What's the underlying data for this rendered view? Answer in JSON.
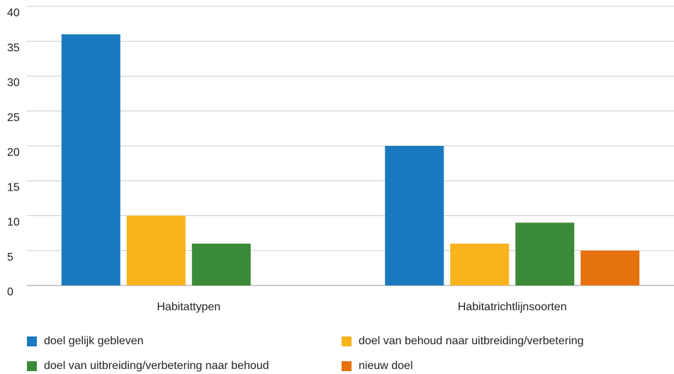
{
  "chart_data": {
    "type": "bar",
    "categories": [
      "Habitattypen",
      "Habitatrichtlijnsoorten"
    ],
    "series": [
      {
        "name": "doel gelijk gebleven",
        "color": "#1a7abf",
        "values": [
          36,
          20
        ]
      },
      {
        "name": "doel van behoud naar uitbreiding/verbetering",
        "color": "#f9b31d",
        "values": [
          10,
          6
        ]
      },
      {
        "name": "doel van uitbreiding/verbetering naar behoud",
        "color": "#3b8a37",
        "values": [
          6,
          9
        ]
      },
      {
        "name": "nieuw doel",
        "color": "#e5710f",
        "values": [
          null,
          5
        ]
      }
    ],
    "ylim": [
      0,
      40
    ],
    "yticks": [
      0,
      5,
      10,
      15,
      20,
      25,
      30,
      35,
      40
    ],
    "grid": true
  }
}
